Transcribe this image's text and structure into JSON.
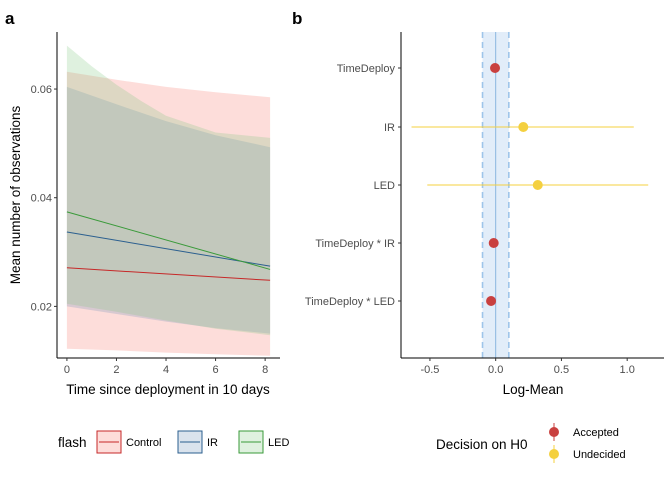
{
  "chart_data": [
    {
      "panel": "a",
      "type": "line",
      "xlabel": "Time since deployment in 10 days",
      "ylabel": "Mean number of observations",
      "xlim": [
        -0.4,
        8.6
      ],
      "ylim": [
        0.0105,
        0.0705
      ],
      "xticks": [
        "0",
        "2",
        "4",
        "6",
        "8"
      ],
      "yticks": [
        "0.02",
        "0.04",
        "0.06"
      ],
      "x": [
        0,
        8.2
      ],
      "series": [
        {
          "name": "Control",
          "color": "#C62828",
          "fill": "#F8766D",
          "mean": [
            0.0271,
            0.0248
          ],
          "lower_curve": [
            [
              0,
              0.0122
            ],
            [
              2,
              0.0119
            ],
            [
              4,
              0.0115
            ],
            [
              6,
              0.0112
            ],
            [
              8.2,
              0.0109
            ]
          ],
          "upper_curve": [
            [
              0,
              0.0632
            ],
            [
              2,
              0.0617
            ],
            [
              4,
              0.0604
            ],
            [
              6,
              0.0594
            ],
            [
              8.2,
              0.0585
            ]
          ]
        },
        {
          "name": "IR",
          "color": "#2B5F8F",
          "fill": "#6A8FB8",
          "mean": [
            0.0337,
            0.0274
          ],
          "lower_curve": [
            [
              0,
              0.02
            ],
            [
              2,
              0.0186
            ],
            [
              4,
              0.0172
            ],
            [
              6,
              0.016
            ],
            [
              8.2,
              0.015
            ]
          ],
          "upper_curve": [
            [
              0,
              0.0604
            ],
            [
              2,
              0.0572
            ],
            [
              4,
              0.0541
            ],
            [
              6,
              0.0515
            ],
            [
              8.2,
              0.0493
            ]
          ]
        },
        {
          "name": "LED",
          "color": "#3A9A3A",
          "fill": "#7FC97F",
          "mean": [
            0.0374,
            0.0268
          ],
          "lower_curve": [
            [
              0,
              0.0205
            ],
            [
              2,
              0.019
            ],
            [
              4,
              0.0174
            ],
            [
              6,
              0.0159
            ],
            [
              8.2,
              0.0147
            ]
          ],
          "upper_curve": [
            [
              0,
              0.068
            ],
            [
              1,
              0.0642
            ],
            [
              2,
              0.0608
            ],
            [
              3,
              0.0578
            ],
            [
              4,
              0.0551
            ],
            [
              6,
              0.052
            ],
            [
              8.2,
              0.051
            ]
          ]
        }
      ],
      "legend": {
        "title": "flash",
        "entries": [
          "Control",
          "IR",
          "LED"
        ],
        "placement": "bottom"
      }
    },
    {
      "panel": "b",
      "type": "scatter",
      "xlabel": "Log-Mean",
      "ylabel": "",
      "xlim": [
        -0.72,
        1.28
      ],
      "xticks": [
        "-0.5",
        "0.0",
        "0.5",
        "1.0"
      ],
      "categories": [
        "TimeDeploy",
        "IR",
        "LED",
        "TimeDeploy * IR",
        "TimeDeploy * LED"
      ],
      "estimates": [
        -0.005,
        0.21,
        0.32,
        -0.015,
        -0.035
      ],
      "ci_low": [
        -0.005,
        -0.64,
        -0.52,
        -0.015,
        -0.035
      ],
      "ci_high": [
        -0.005,
        1.05,
        1.16,
        -0.015,
        -0.035
      ],
      "decision": [
        "Accepted",
        "Undecided",
        "Undecided",
        "Accepted",
        "Accepted"
      ],
      "rope": [
        -0.1,
        0.1
      ],
      "reference_line": 0,
      "legend": {
        "title": "Decision on H0",
        "entries": [
          "Accepted",
          "Undecided"
        ],
        "colors": [
          "#C9403F",
          "#F4D03F"
        ],
        "placement": "bottom"
      }
    }
  ]
}
